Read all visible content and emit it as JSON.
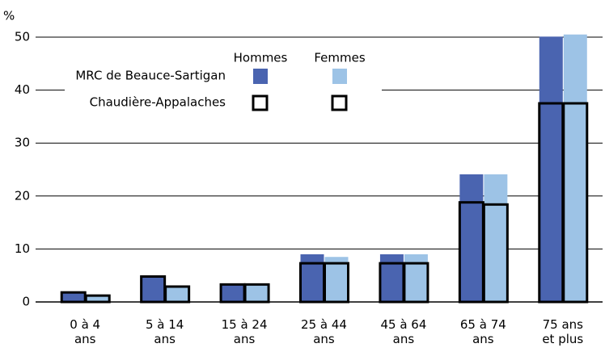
{
  "chart_data": {
    "type": "bar",
    "y_unit": "%",
    "categories": [
      "0 à 4\nans",
      "5 à 14\nans",
      "15 à 24\nans",
      "25 à 44\nans",
      "45 à 64\nans",
      "65 à 74\nans",
      "75 ans\net plus"
    ],
    "sexes": [
      "Hommes",
      "Femmes"
    ],
    "regions": [
      {
        "name": "MRC de Beauce-Sartigan",
        "style": "fill",
        "series": [
          {
            "color": "#4a64b0",
            "values": [
              1.8,
              4.8,
              3.3,
              9.0,
              9.0,
              24.1,
              50.1
            ]
          },
          {
            "color": "#9dc3e6",
            "values": [
              1.2,
              2.9,
              3.3,
              8.5,
              9.0,
              24.1,
              50.5
            ]
          }
        ]
      },
      {
        "name": "Chaudière-Appalaches",
        "style": "outline",
        "series": [
          {
            "color": "#000000",
            "values": [
              1.8,
              4.8,
              3.3,
              7.3,
              7.3,
              18.8,
              37.5
            ]
          },
          {
            "color": "#000000",
            "values": [
              1.2,
              2.9,
              3.3,
              7.3,
              7.3,
              18.4,
              37.5
            ]
          }
        ]
      }
    ],
    "ylim": [
      0,
      50
    ],
    "yticks": [
      0,
      10,
      20,
      30,
      40,
      50
    ],
    "grid": true
  }
}
